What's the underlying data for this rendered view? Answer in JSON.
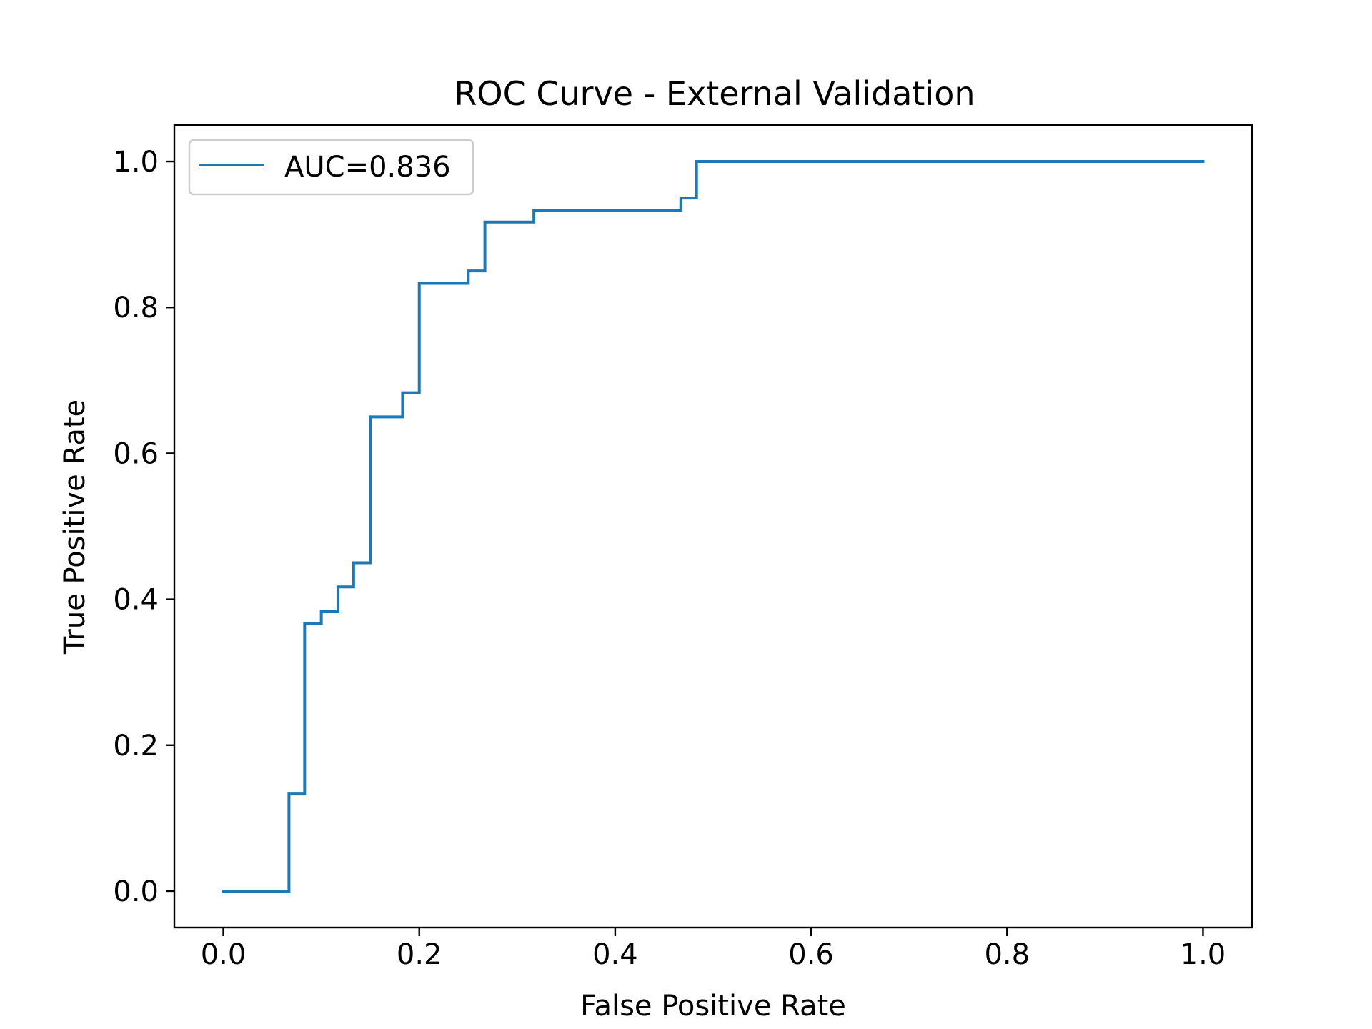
{
  "chart_data": {
    "type": "line",
    "title": "ROC Curve - External Validation",
    "xlabel": "False Positive Rate",
    "ylabel": "True Positive Rate",
    "xlim": [
      -0.05,
      1.05
    ],
    "ylim": [
      -0.05,
      1.05
    ],
    "xticks": [
      0.0,
      0.2,
      0.4,
      0.6,
      0.8,
      1.0
    ],
    "yticks": [
      0.0,
      0.2,
      0.4,
      0.6,
      0.8,
      1.0
    ],
    "xtick_labels": [
      "0.0",
      "0.2",
      "0.4",
      "0.6",
      "0.8",
      "1.0"
    ],
    "ytick_labels": [
      "0.0",
      "0.2",
      "0.4",
      "0.6",
      "0.8",
      "1.0"
    ],
    "grid": false,
    "legend_position": "top-left",
    "series": [
      {
        "name": "AUC=0.836",
        "color": "#1f77b4",
        "x": [
          0.0,
          0.067,
          0.067,
          0.083,
          0.083,
          0.1,
          0.1,
          0.117,
          0.117,
          0.133,
          0.133,
          0.15,
          0.15,
          0.183,
          0.183,
          0.2,
          0.2,
          0.25,
          0.25,
          0.267,
          0.267,
          0.317,
          0.317,
          0.467,
          0.467,
          0.483,
          0.483,
          1.0
        ],
        "y": [
          0.0,
          0.0,
          0.133,
          0.133,
          0.367,
          0.367,
          0.383,
          0.383,
          0.417,
          0.417,
          0.45,
          0.45,
          0.65,
          0.65,
          0.683,
          0.683,
          0.833,
          0.833,
          0.85,
          0.85,
          0.917,
          0.917,
          0.933,
          0.933,
          0.95,
          0.95,
          1.0,
          1.0
        ]
      }
    ]
  }
}
